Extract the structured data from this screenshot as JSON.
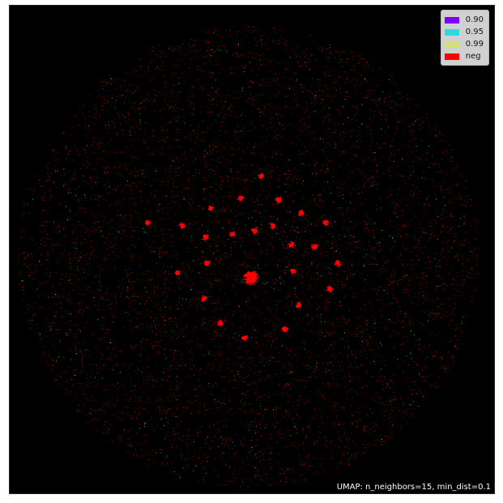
{
  "chart_data": {
    "type": "scatter",
    "title": "",
    "xlabel": "",
    "ylabel": "",
    "grid": false,
    "legend_position": "top-right",
    "background": "#000000",
    "series": [
      {
        "name": "0.90",
        "color": "#8000ff"
      },
      {
        "name": "0.95",
        "color": "#2adddd"
      },
      {
        "name": "0.99",
        "color": "#d4dd80"
      },
      {
        "name": "neg",
        "color": "#ff0000"
      }
    ],
    "annotation": "UMAP: n_neighbors=15, min_dist=0.1"
  }
}
